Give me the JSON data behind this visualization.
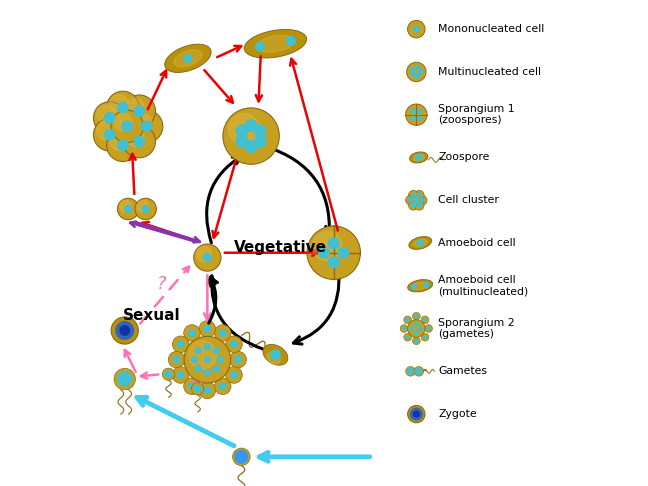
{
  "bg_color": "#ffffff",
  "legend_items": [
    "Mononucleated cell",
    "Multinucleated cell",
    "Sporangium 1\n(zoospores)",
    "Zoospore",
    "Cell cluster",
    "Amoeboid cell",
    "Amoeboid cell\n(multinucleated)",
    "Sporangium 2\n(gametes)",
    "Gametes",
    "Zygote"
  ],
  "vegetative_label": "Vegetative",
  "sexual_label": "Sexual",
  "question_mark": "?",
  "gold": "#C8A020",
  "gold_dark": "#8B6914",
  "gold_mid": "#B8900A",
  "gold_light": "#E0C050",
  "teal": "#40C0D0",
  "blue_cell": "#2255AA",
  "black": "#000000",
  "red": "#EE0000",
  "pink": "#FF70B8",
  "purple": "#8833AA",
  "cyan": "#44CCEE",
  "fig_w": 6.48,
  "fig_h": 4.86,
  "dpi": 100
}
